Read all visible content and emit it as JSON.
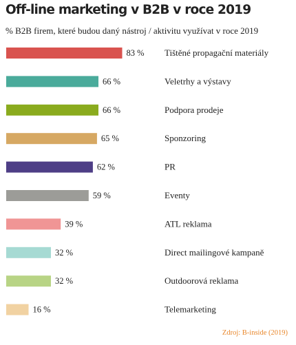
{
  "title": "Off-line marketing v B2B v roce 2019",
  "subtitle": "% B2B firem, které budou daný nástroj / aktivitu využívat v roce 2019",
  "source": "Zdroj: B-inside (2019)",
  "chart_data": {
    "type": "bar",
    "orientation": "horizontal",
    "title": "Off-line marketing v B2B v roce 2019",
    "subtitle": "% B2B firem, které budou daný nástroj / aktivitu využívat v roce 2019",
    "unit": "%",
    "xlim": [
      0,
      100
    ],
    "grid": false,
    "categories": [
      "Tištěné propagační materiály",
      "Veletrhy a výstavy",
      "Podpora prodeje",
      "Sponzoring",
      "PR",
      "Eventy",
      "ATL reklama",
      "Direct mailingové kampaně",
      "Outdoorová reklama",
      "Telemarketing"
    ],
    "values": [
      83,
      66,
      66,
      65,
      62,
      59,
      39,
      32,
      32,
      16
    ],
    "value_labels": [
      "83 %",
      "66 %",
      "66 %",
      "65 %",
      "62 %",
      "59 %",
      "39 %",
      "32 %",
      "32 %",
      "16 %"
    ],
    "colors": [
      "#d9534f",
      "#4aab9b",
      "#8aab1e",
      "#d6a863",
      "#4e3e86",
      "#9c9c98",
      "#f09595",
      "#a6dad3",
      "#b8d485",
      "#f1d2a2"
    ]
  }
}
